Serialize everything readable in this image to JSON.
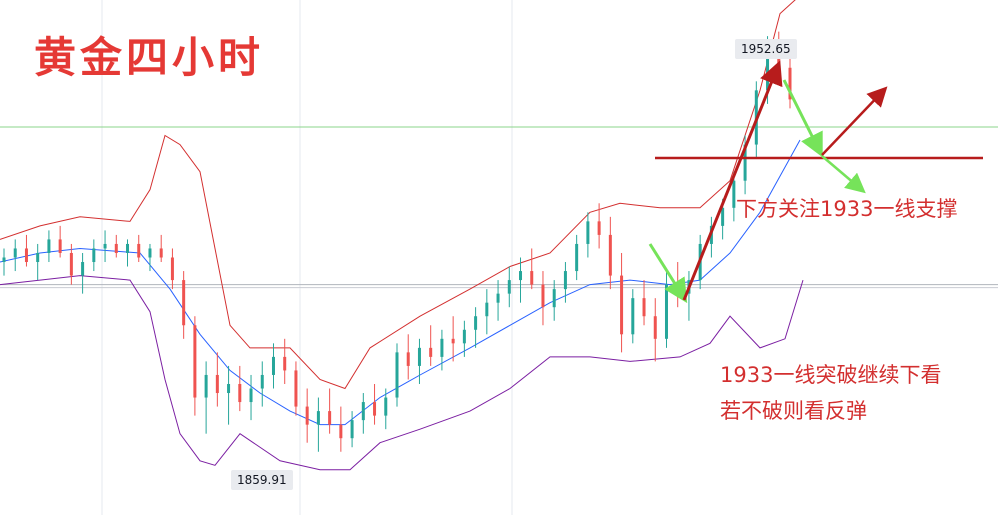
{
  "title": "黄金四小时",
  "annotations": {
    "support_note": "下方关注1933一线支撑",
    "break_note_1": "1933一线突破继续下看",
    "break_note_2": "若不破则看反弹"
  },
  "colors": {
    "background": "#ffffff",
    "candle_up": "#26a69a",
    "candle_down": "#ef5350",
    "upper_band": "#d32f2f",
    "middle_band": "#2962ff",
    "lower_band": "#7b1fa2",
    "annotation_red": "#b71c1c",
    "annotation_green": "#76e35a"
  },
  "chart_data": {
    "type": "candlestick",
    "instrument": "黄金",
    "timeframe": "4H",
    "ylim": [
      1846,
      1960
    ],
    "high_label": "1952.65",
    "low_label": "1859.91",
    "support_level": 1933,
    "current_price_line": 1897,
    "indicators": [
      "upper band",
      "middle band",
      "lower band"
    ],
    "series": [
      {
        "name": "upper",
        "points": [
          [
            0,
            1907
          ],
          [
            40,
            1910
          ],
          [
            80,
            1912
          ],
          [
            130,
            1911
          ],
          [
            150,
            1918
          ],
          [
            165,
            1930
          ],
          [
            180,
            1928
          ],
          [
            200,
            1922
          ],
          [
            215,
            1905
          ],
          [
            230,
            1888
          ],
          [
            250,
            1883
          ],
          [
            290,
            1883
          ],
          [
            320,
            1876
          ],
          [
            345,
            1874
          ],
          [
            370,
            1883
          ],
          [
            420,
            1890
          ],
          [
            470,
            1896
          ],
          [
            510,
            1901
          ],
          [
            550,
            1904
          ],
          [
            590,
            1913
          ],
          [
            620,
            1915
          ],
          [
            660,
            1914
          ],
          [
            700,
            1914
          ],
          [
            730,
            1920
          ],
          [
            760,
            1940
          ],
          [
            780,
            1957
          ],
          [
            800,
            1961
          ]
        ]
      },
      {
        "name": "middle",
        "points": [
          [
            0,
            1902
          ],
          [
            40,
            1904
          ],
          [
            80,
            1905
          ],
          [
            140,
            1904
          ],
          [
            170,
            1896
          ],
          [
            200,
            1886
          ],
          [
            230,
            1878
          ],
          [
            260,
            1873
          ],
          [
            290,
            1869
          ],
          [
            320,
            1866
          ],
          [
            345,
            1866
          ],
          [
            380,
            1872
          ],
          [
            420,
            1877
          ],
          [
            470,
            1883
          ],
          [
            510,
            1888
          ],
          [
            550,
            1893
          ],
          [
            590,
            1897
          ],
          [
            630,
            1898
          ],
          [
            670,
            1897
          ],
          [
            700,
            1898
          ],
          [
            730,
            1904
          ],
          [
            760,
            1913
          ],
          [
            790,
            1925
          ],
          [
            800,
            1929
          ]
        ]
      },
      {
        "name": "lower",
        "points": [
          [
            0,
            1897
          ],
          [
            40,
            1898
          ],
          [
            80,
            1899
          ],
          [
            130,
            1898
          ],
          [
            150,
            1891
          ],
          [
            165,
            1876
          ],
          [
            180,
            1864
          ],
          [
            200,
            1858
          ],
          [
            215,
            1857
          ],
          [
            240,
            1864
          ],
          [
            280,
            1858
          ],
          [
            320,
            1856
          ],
          [
            350,
            1856
          ],
          [
            380,
            1862
          ],
          [
            420,
            1865
          ],
          [
            470,
            1869
          ],
          [
            510,
            1874
          ],
          [
            550,
            1881
          ],
          [
            590,
            1881
          ],
          [
            630,
            1880
          ],
          [
            680,
            1881
          ],
          [
            710,
            1884
          ],
          [
            730,
            1890
          ],
          [
            760,
            1883
          ],
          [
            785,
            1885
          ],
          [
            803,
            1898
          ]
        ]
      }
    ],
    "candles": [
      [
        1902,
        1905,
        1899,
        1903
      ],
      [
        1903,
        1907,
        1900,
        1905
      ],
      [
        1905,
        1908,
        1901,
        1902
      ],
      [
        1902,
        1906,
        1898,
        1904
      ],
      [
        1904,
        1909,
        1902,
        1907
      ],
      [
        1907,
        1910,
        1903,
        1904
      ],
      [
        1904,
        1906,
        1897,
        1899
      ],
      [
        1899,
        1904,
        1895,
        1902
      ],
      [
        1902,
        1907,
        1900,
        1905
      ],
      [
        1905,
        1909,
        1902,
        1906
      ],
      [
        1906,
        1908,
        1903,
        1904
      ],
      [
        1904,
        1907,
        1901,
        1906
      ],
      [
        1906,
        1908,
        1902,
        1903
      ],
      [
        1903,
        1906,
        1900,
        1905
      ],
      [
        1905,
        1908,
        1902,
        1903
      ],
      [
        1903,
        1905,
        1896,
        1898
      ],
      [
        1898,
        1900,
        1885,
        1888
      ],
      [
        1888,
        1890,
        1868,
        1872
      ],
      [
        1872,
        1880,
        1864,
        1877
      ],
      [
        1877,
        1882,
        1870,
        1873
      ],
      [
        1873,
        1879,
        1866,
        1875
      ],
      [
        1875,
        1879,
        1869,
        1871
      ],
      [
        1871,
        1877,
        1867,
        1874
      ],
      [
        1874,
        1880,
        1870,
        1877
      ],
      [
        1877,
        1884,
        1874,
        1881
      ],
      [
        1881,
        1885,
        1875,
        1878
      ],
      [
        1878,
        1880,
        1868,
        1870
      ],
      [
        1870,
        1874,
        1862,
        1866
      ],
      [
        1866,
        1872,
        1860,
        1869
      ],
      [
        1869,
        1874,
        1864,
        1866
      ],
      [
        1866,
        1870,
        1860,
        1863
      ],
      [
        1863,
        1869,
        1861,
        1867
      ],
      [
        1867,
        1873,
        1864,
        1871
      ],
      [
        1871,
        1875,
        1866,
        1868
      ],
      [
        1868,
        1874,
        1865,
        1872
      ],
      [
        1872,
        1884,
        1870,
        1882
      ],
      [
        1882,
        1886,
        1876,
        1879
      ],
      [
        1879,
        1885,
        1875,
        1883
      ],
      [
        1883,
        1888,
        1879,
        1881
      ],
      [
        1881,
        1887,
        1878,
        1885
      ],
      [
        1885,
        1890,
        1880,
        1884
      ],
      [
        1884,
        1889,
        1881,
        1887
      ],
      [
        1887,
        1892,
        1883,
        1890
      ],
      [
        1890,
        1896,
        1886,
        1893
      ],
      [
        1893,
        1898,
        1889,
        1895
      ],
      [
        1895,
        1901,
        1892,
        1898
      ],
      [
        1898,
        1903,
        1893,
        1900
      ],
      [
        1900,
        1905,
        1896,
        1897
      ],
      [
        1897,
        1900,
        1888,
        1892
      ],
      [
        1892,
        1898,
        1889,
        1896
      ],
      [
        1896,
        1902,
        1893,
        1900
      ],
      [
        1900,
        1908,
        1898,
        1906
      ],
      [
        1906,
        1913,
        1903,
        1911
      ],
      [
        1911,
        1915,
        1905,
        1908
      ],
      [
        1908,
        1912,
        1896,
        1899
      ],
      [
        1899,
        1904,
        1882,
        1886
      ],
      [
        1886,
        1896,
        1884,
        1894
      ],
      [
        1894,
        1898,
        1888,
        1890
      ],
      [
        1890,
        1894,
        1880,
        1885
      ],
      [
        1885,
        1900,
        1883,
        1897
      ],
      [
        1897,
        1902,
        1892,
        1895
      ],
      [
        1895,
        1900,
        1889,
        1898
      ],
      [
        1898,
        1908,
        1896,
        1906
      ],
      [
        1906,
        1912,
        1903,
        1910
      ],
      [
        1910,
        1916,
        1907,
        1914
      ],
      [
        1914,
        1922,
        1911,
        1920
      ],
      [
        1920,
        1930,
        1917,
        1928
      ],
      [
        1928,
        1942,
        1925,
        1940
      ],
      [
        1940,
        1952,
        1937,
        1949
      ],
      [
        1949,
        1953,
        1942,
        1945
      ],
      [
        1945,
        1948,
        1936,
        1938
      ]
    ]
  }
}
